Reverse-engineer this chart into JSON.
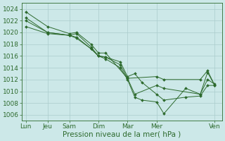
{
  "background_color": "#cce8e8",
  "grid_color": "#aacccc",
  "line_color": "#2d6a2d",
  "marker_color": "#2d6a2d",
  "xlabel": "Pression niveau de la mer( hPa )",
  "xlabel_fontsize": 7.5,
  "tick_fontsize": 6.5,
  "ylim": [
    1005,
    1025
  ],
  "yticks": [
    1006,
    1008,
    1010,
    1012,
    1014,
    1016,
    1018,
    1020,
    1022,
    1024
  ],
  "x_tick_labels": [
    "Lun",
    "Jeu",
    "Sam",
    "Dim",
    "Mar",
    "Mer",
    "Ven"
  ],
  "x_tick_positions": [
    0,
    3,
    6,
    10,
    14,
    18,
    26
  ],
  "xlim": [
    -0.5,
    27
  ],
  "series": [
    {
      "x": [
        0,
        3,
        6,
        7,
        9,
        10,
        11,
        14,
        18,
        19,
        24,
        25,
        26
      ],
      "y": [
        1023.5,
        1021.0,
        1019.8,
        1020.0,
        1018.0,
        1016.5,
        1016.5,
        1012.2,
        1012.5,
        1012.0,
        1012.0,
        1013.5,
        1011.0
      ]
    },
    {
      "x": [
        0,
        3,
        6,
        7,
        9,
        10,
        11,
        13,
        14,
        15,
        18,
        19,
        24,
        25,
        26
      ],
      "y": [
        1022.5,
        1020.0,
        1019.5,
        1019.8,
        1017.5,
        1016.0,
        1015.8,
        1014.5,
        1012.2,
        1009.5,
        1011.0,
        1010.5,
        1009.5,
        1012.0,
        1011.2
      ]
    },
    {
      "x": [
        0,
        3,
        6,
        7,
        9,
        10,
        11,
        13,
        14,
        15,
        16,
        18,
        19,
        22,
        24,
        25,
        26
      ],
      "y": [
        1022.0,
        1020.0,
        1019.5,
        1019.2,
        1017.2,
        1016.0,
        1015.5,
        1014.0,
        1012.0,
        1009.0,
        1008.5,
        1008.2,
        1006.2,
        1010.5,
        1009.5,
        1013.2,
        1011.0
      ]
    },
    {
      "x": [
        0,
        3,
        6,
        7,
        9,
        10,
        11,
        13,
        14,
        15,
        16,
        18,
        19,
        22,
        24,
        25,
        26
      ],
      "y": [
        1021.0,
        1019.8,
        1019.5,
        1019.0,
        1017.2,
        1016.0,
        1015.8,
        1015.0,
        1012.5,
        1013.0,
        1011.5,
        1009.5,
        1008.5,
        1009.0,
        1009.2,
        1011.0,
        1011.0
      ]
    }
  ]
}
